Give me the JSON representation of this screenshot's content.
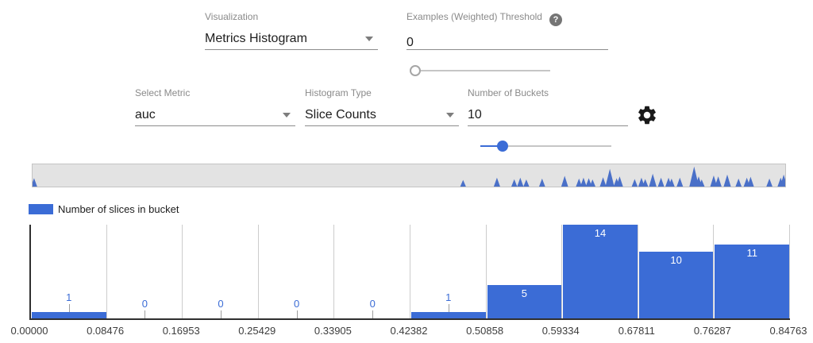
{
  "colors": {
    "accent": "#3b6cd6",
    "spike": "#4a70c8",
    "bar_label_outside": "#3b6cd6",
    "gridline": "#cccccc"
  },
  "controls": {
    "visualization": {
      "label": "Visualization",
      "value": "Metrics Histogram"
    },
    "threshold": {
      "label": "Examples (Weighted) Threshold",
      "help_text": "?",
      "value": "0",
      "slider_percent": 1
    },
    "metric": {
      "label": "Select Metric",
      "value": "auc"
    },
    "histogram_type": {
      "label": "Histogram Type",
      "value": "Slice Counts"
    },
    "num_buckets": {
      "label": "Number of Buckets",
      "value": "10",
      "slider_percent": 17
    }
  },
  "overview_strip": {
    "spikes": [
      [
        0.2,
        38
      ],
      [
        57.2,
        30
      ],
      [
        61.7,
        40
      ],
      [
        64.0,
        33
      ],
      [
        64.8,
        40
      ],
      [
        65.6,
        32
      ],
      [
        67.7,
        36
      ],
      [
        70.7,
        48
      ],
      [
        72.6,
        36
      ],
      [
        73.2,
        40
      ],
      [
        73.9,
        38
      ],
      [
        74.4,
        32
      ],
      [
        75.8,
        42
      ],
      [
        76.7,
        80
      ],
      [
        77.6,
        38
      ],
      [
        78.0,
        46
      ],
      [
        80.0,
        34
      ],
      [
        80.9,
        40
      ],
      [
        81.4,
        34
      ],
      [
        82.4,
        58
      ],
      [
        83.5,
        40
      ],
      [
        84.5,
        40
      ],
      [
        84.9,
        36
      ],
      [
        86.0,
        40
      ],
      [
        87.9,
        90
      ],
      [
        88.5,
        46
      ],
      [
        88.9,
        32
      ],
      [
        90.5,
        50
      ],
      [
        91.1,
        46
      ],
      [
        92.3,
        54
      ],
      [
        93.8,
        36
      ],
      [
        94.9,
        40
      ],
      [
        95.4,
        44
      ],
      [
        97.9,
        36
      ],
      [
        99.4,
        40
      ],
      [
        99.8,
        54
      ]
    ]
  },
  "legend": {
    "label": "Number of slices in bucket"
  },
  "chart_data": {
    "type": "bar",
    "series_name": "Number of slices in bucket",
    "values": [
      1,
      0,
      0,
      0,
      0,
      1,
      5,
      14,
      10,
      11
    ],
    "bucket_edges": [
      "0.00000",
      "0.08476",
      "0.16953",
      "0.25429",
      "0.33905",
      "0.42382",
      "0.50858",
      "0.59334",
      "0.67811",
      "0.76287",
      "0.84763"
    ],
    "ylim": [
      0,
      14
    ],
    "grid": "vertical-only",
    "legend_position": "top-left",
    "value_label_inside_min": 5
  }
}
